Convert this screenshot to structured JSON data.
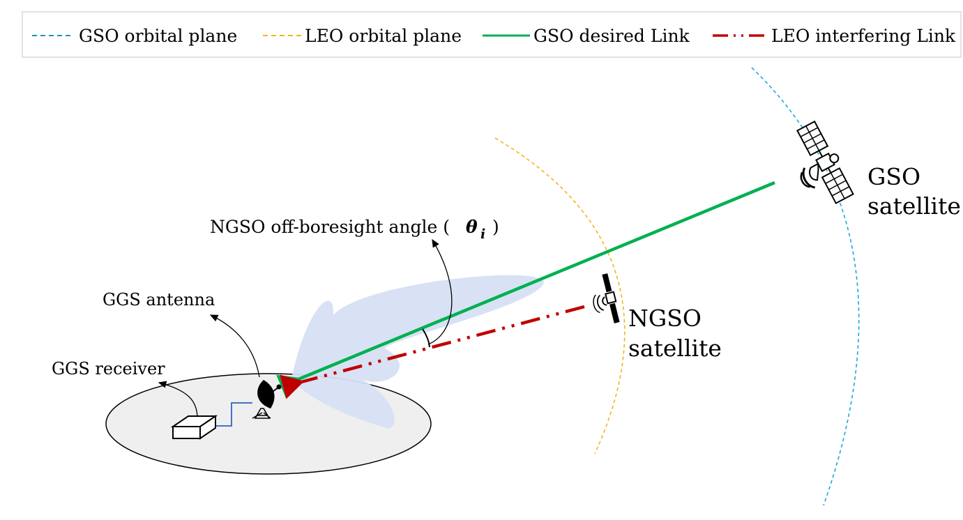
{
  "legend": {
    "items": [
      {
        "label": "GSO orbital plane",
        "color": "#1f8fc8",
        "style": "dashed"
      },
      {
        "label": "LEO orbital plane",
        "color": "#f2b41c",
        "style": "dashed"
      },
      {
        "label": "GSO desired Link",
        "color": "#00b050",
        "style": "solid"
      },
      {
        "label": "LEO interfering Link",
        "color": "#c00000",
        "style": "dash-dot-dot"
      }
    ]
  },
  "labels": {
    "gso_satellite_line1": "GSO",
    "gso_satellite_line2": "satellite",
    "ngso_satellite_line1": "NGSO",
    "ngso_satellite_line2": "satellite",
    "off_boresight_text": "NGSO off-boresight angle (",
    "theta_symbol": "θ",
    "theta_subscript": "i",
    "off_boresight_close": ")",
    "ggs_antenna": "GGS antenna",
    "ggs_receiver": "GGS receiver"
  },
  "colors": {
    "gso_link": "#00b050",
    "leo_link": "#c00000",
    "gso_orbit": "#1fa8d8",
    "leo_orbit": "#f2b41c",
    "beam": "#d6e0f3",
    "ground": "#efefef",
    "cable": "#4472c4"
  },
  "icons": {
    "gso_satellite": "satellite-icon",
    "ngso_satellite": "satellite-icon",
    "antenna": "dish-antenna-icon",
    "receiver": "receiver-box-icon"
  }
}
